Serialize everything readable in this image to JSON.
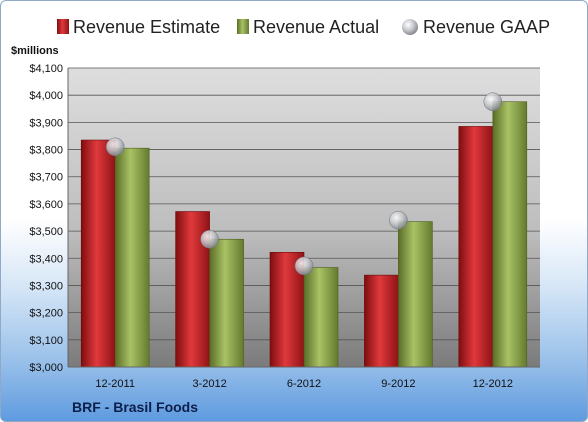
{
  "chart_data": {
    "type": "bar",
    "categories": [
      "12-2011",
      "3-2012",
      "6-2012",
      "9-2012",
      "12-2012"
    ],
    "series": [
      {
        "name": "Revenue Estimate",
        "values": [
          3835,
          3572,
          3422,
          3338,
          3885
        ],
        "color": "#c8262b"
      },
      {
        "name": "Revenue Actual",
        "values": [
          3805,
          3470,
          3366,
          3535,
          3976
        ],
        "color": "#8aa04c"
      },
      {
        "name": "Revenue GAAP",
        "values": [
          3810,
          3470,
          3372,
          3540,
          3976
        ],
        "color": "#b9bcc2",
        "marker": "sphere"
      }
    ],
    "ylabel": "$millions",
    "ylim": [
      3000,
      4100
    ],
    "yticks": [
      "$3,000",
      "$3,100",
      "$3,200",
      "$3,300",
      "$3,400",
      "$3,500",
      "$3,600",
      "$3,700",
      "$3,800",
      "$3,900",
      "$4,000",
      "$4,100"
    ],
    "grid": true,
    "legend": "top"
  },
  "footer": {
    "company": "BRF - Brasil Foods"
  }
}
